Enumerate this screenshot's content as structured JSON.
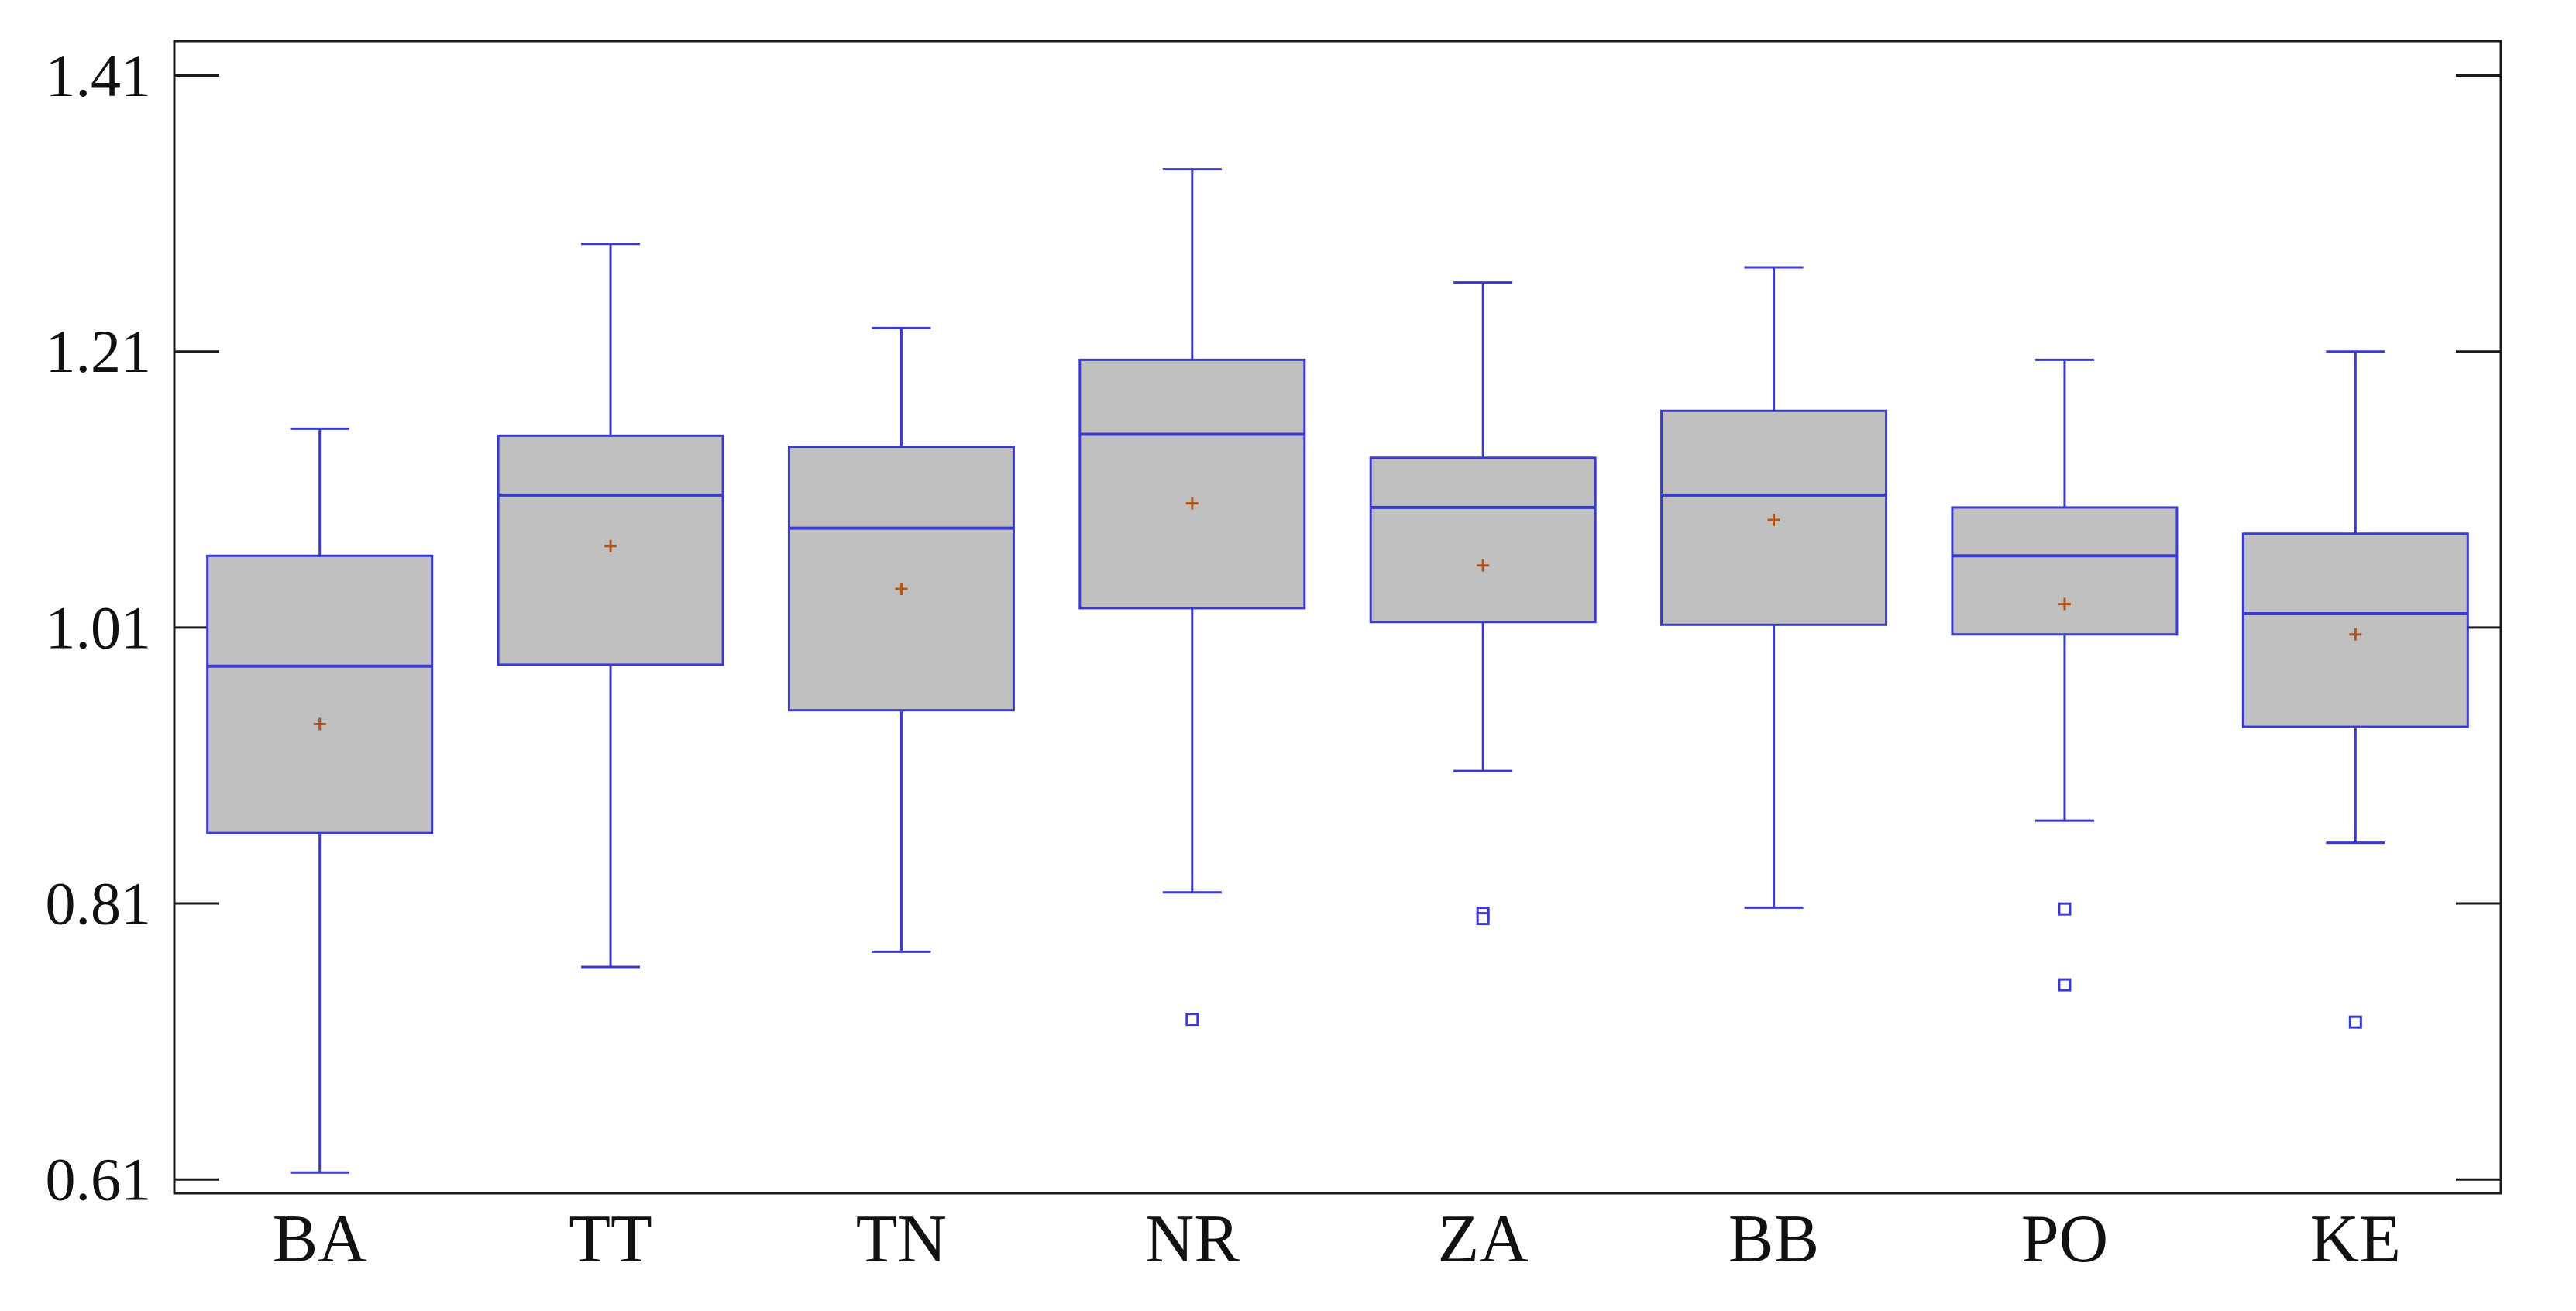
{
  "chart_data": {
    "type": "boxplot",
    "title": "",
    "xlabel": "",
    "ylabel": "",
    "ylim": [
      0.6,
      1.435
    ],
    "yticks": [
      "0.61",
      "0.81",
      "1.01",
      "1.21",
      "1.41"
    ],
    "grid": false,
    "legend": "none",
    "categories": [
      "BA",
      "TT",
      "TN",
      "NR",
      "ZA",
      "BB",
      "PO",
      "KE"
    ],
    "boxes": [
      {
        "label": "BA",
        "whisker_low": 0.615,
        "q1": 0.861,
        "median": 0.982,
        "q3": 1.062,
        "whisker_high": 1.154,
        "mean": 0.94,
        "outliers": []
      },
      {
        "label": "TT",
        "whisker_low": 0.764,
        "q1": 0.983,
        "median": 1.106,
        "q3": 1.149,
        "whisker_high": 1.288,
        "mean": 1.069,
        "outliers": []
      },
      {
        "label": "TN",
        "whisker_low": 0.775,
        "q1": 0.95,
        "median": 1.082,
        "q3": 1.141,
        "whisker_high": 1.227,
        "mean": 1.038,
        "outliers": []
      },
      {
        "label": "NR",
        "whisker_low": 0.818,
        "q1": 1.024,
        "median": 1.15,
        "q3": 1.204,
        "whisker_high": 1.342,
        "mean": 1.1,
        "outliers": [
          0.726
        ]
      },
      {
        "label": "ZA",
        "whisker_low": 0.906,
        "q1": 1.014,
        "median": 1.097,
        "q3": 1.133,
        "whisker_high": 1.26,
        "mean": 1.055,
        "outliers": [
          0.803,
          0.799
        ]
      },
      {
        "label": "BB",
        "whisker_low": 0.807,
        "q1": 1.012,
        "median": 1.106,
        "q3": 1.167,
        "whisker_high": 1.271,
        "mean": 1.088,
        "outliers": []
      },
      {
        "label": "PO",
        "whisker_low": 0.87,
        "q1": 1.005,
        "median": 1.062,
        "q3": 1.097,
        "whisker_high": 1.204,
        "mean": 1.027,
        "outliers": [
          0.806,
          0.751
        ]
      },
      {
        "label": "KE",
        "whisker_low": 0.854,
        "q1": 0.938,
        "median": 1.02,
        "q3": 1.078,
        "whisker_high": 1.21,
        "mean": 1.005,
        "outliers": [
          0.724
        ]
      }
    ],
    "colors": {
      "box_fill": "#c0c0c0",
      "box_stroke": "#3a3ad0",
      "mean_marker": "#b0541a",
      "frame": "#1a1a1a"
    }
  }
}
